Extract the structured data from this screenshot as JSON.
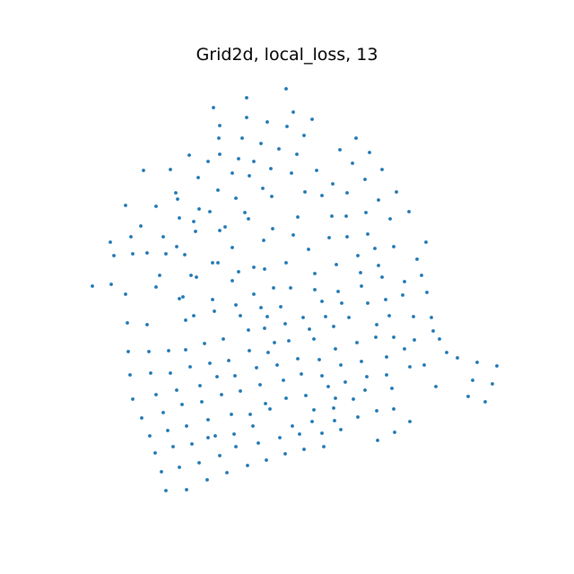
{
  "chart_data": {
    "type": "scatter",
    "title": "Grid2d, local_loss, 13",
    "xlabel": "",
    "ylabel": "",
    "axes_visible": false,
    "grid": false,
    "legend": "none",
    "marker_color": "#1f77b4",
    "points": [
      [
        319,
        99
      ],
      [
        275,
        109
      ],
      [
        238,
        120
      ],
      [
        327,
        125
      ],
      [
        275,
        131
      ],
      [
        348,
        133
      ],
      [
        298,
        136
      ],
      [
        245,
        140
      ],
      [
        320,
        141
      ],
      [
        244,
        154
      ],
      [
        339,
        151
      ],
      [
        270,
        154
      ],
      [
        291,
        160
      ],
      [
        397,
        154
      ],
      [
        379,
        167
      ],
      [
        311,
        166
      ],
      [
        412,
        170
      ],
      [
        211,
        173
      ],
      [
        232,
        180
      ],
      [
        331,
        172
      ],
      [
        245,
        172
      ],
      [
        266,
        177
      ],
      [
        283,
        180
      ],
      [
        393,
        182
      ],
      [
        160,
        190
      ],
      [
        190,
        189
      ],
      [
        302,
        188
      ],
      [
        353,
        190
      ],
      [
        259,
        193
      ],
      [
        325,
        193
      ],
      [
        278,
        196
      ],
      [
        221,
        198
      ],
      [
        407,
        200
      ],
      [
        371,
        205
      ],
      [
        426,
        189
      ],
      [
        196,
        215
      ],
      [
        198,
        222
      ],
      [
        243,
        212
      ],
      [
        293,
        210
      ],
      [
        263,
        221
      ],
      [
        303,
        219
      ],
      [
        340,
        214
      ],
      [
        359,
        218
      ],
      [
        387,
        215
      ],
      [
        442,
        214
      ],
      [
        422,
        223
      ],
      [
        140,
        229
      ],
      [
        174,
        230
      ],
      [
        222,
        233
      ],
      [
        234,
        236
      ],
      [
        273,
        237
      ],
      [
        277,
        244
      ],
      [
        216,
        247
      ],
      [
        200,
        243
      ],
      [
        332,
        242
      ],
      [
        370,
        241
      ],
      [
        386,
        241
      ],
      [
        408,
        237
      ],
      [
        435,
        244
      ],
      [
        456,
        236
      ],
      [
        157,
        252
      ],
      [
        251,
        253
      ],
      [
        245,
        257
      ],
      [
        304,
        255
      ],
      [
        218,
        258
      ],
      [
        327,
        262
      ],
      [
        367,
        265
      ],
      [
        387,
        264
      ],
      [
        410,
        261
      ],
      [
        475,
        270
      ],
      [
        123,
        270
      ],
      [
        146,
        264
      ],
      [
        182,
        264
      ],
      [
        294,
        268
      ],
      [
        259,
        276
      ],
      [
        344,
        278
      ],
      [
        197,
        275
      ],
      [
        418,
        277
      ],
      [
        439,
        275
      ],
      [
        127,
        285
      ],
      [
        148,
        283
      ],
      [
        164,
        282
      ],
      [
        185,
        283
      ],
      [
        206,
        284
      ],
      [
        237,
        293
      ],
      [
        243,
        293
      ],
      [
        319,
        293
      ],
      [
        283,
        298
      ],
      [
        295,
        300
      ],
      [
        375,
        295
      ],
      [
        399,
        285
      ],
      [
        422,
        296
      ],
      [
        465,
        289
      ],
      [
        103,
        319
      ],
      [
        124,
        317
      ],
      [
        178,
        307
      ],
      [
        213,
        307
      ],
      [
        219,
        309
      ],
      [
        266,
        303
      ],
      [
        259,
        313
      ],
      [
        351,
        305
      ],
      [
        402,
        304
      ],
      [
        426,
        309
      ],
      [
        470,
        307
      ],
      [
        451,
        314
      ],
      [
        174,
        320
      ],
      [
        140,
        328
      ],
      [
        200,
        333
      ],
      [
        204,
        331
      ],
      [
        237,
        334
      ],
      [
        283,
        328
      ],
      [
        305,
        321
      ],
      [
        324,
        321
      ],
      [
        351,
        323
      ],
      [
        377,
        325
      ],
      [
        403,
        319
      ],
      [
        430,
        334
      ],
      [
        449,
        329
      ],
      [
        476,
        326
      ],
      [
        263,
        340
      ],
      [
        359,
        336
      ],
      [
        381,
        338
      ],
      [
        410,
        338
      ],
      [
        239,
        347
      ],
      [
        291,
        343
      ],
      [
        313,
        342
      ],
      [
        481,
        354
      ],
      [
        142,
        360
      ],
      [
        164,
        362
      ],
      [
        207,
        357
      ],
      [
        216,
        352
      ],
      [
        268,
        352
      ],
      [
        298,
        353
      ],
      [
        318,
        361
      ],
      [
        338,
        354
      ],
      [
        363,
        353
      ],
      [
        389,
        354
      ],
      [
        434,
        352
      ],
      [
        461,
        353
      ],
      [
        295,
        366
      ],
      [
        277,
        368
      ],
      [
        345,
        367
      ],
      [
        372,
        364
      ],
      [
        420,
        362
      ],
      [
        483,
        369
      ],
      [
        228,
        383
      ],
      [
        249,
        378
      ],
      [
        306,
        382
      ],
      [
        322,
        380
      ],
      [
        350,
        378
      ],
      [
        374,
        389
      ],
      [
        398,
        382
      ],
      [
        419,
        376
      ],
      [
        439,
        376
      ],
      [
        462,
        379
      ],
      [
        143,
        392
      ],
      [
        166,
        392
      ],
      [
        188,
        391
      ],
      [
        207,
        390
      ],
      [
        278,
        391
      ],
      [
        299,
        393
      ],
      [
        490,
        378
      ],
      [
        498,
        393
      ],
      [
        510,
        399
      ],
      [
        532,
        404
      ],
      [
        554,
        408
      ],
      [
        145,
        418
      ],
      [
        168,
        416
      ],
      [
        190,
        416
      ],
      [
        212,
        409
      ],
      [
        234,
        405
      ],
      [
        255,
        402
      ],
      [
        286,
        410
      ],
      [
        309,
        407
      ],
      [
        332,
        400
      ],
      [
        356,
        401
      ],
      [
        380,
        407
      ],
      [
        403,
        403
      ],
      [
        431,
        398
      ],
      [
        451,
        389
      ],
      [
        457,
        409
      ],
      [
        473,
        407
      ],
      [
        527,
        424
      ],
      [
        549,
        428
      ],
      [
        242,
        420
      ],
      [
        262,
        419
      ],
      [
        336,
        417
      ],
      [
        359,
        419
      ],
      [
        409,
        420
      ],
      [
        431,
        418
      ],
      [
        148,
        445
      ],
      [
        174,
        440
      ],
      [
        197,
        435
      ],
      [
        223,
        430
      ],
      [
        247,
        440
      ],
      [
        268,
        436
      ],
      [
        290,
        429
      ],
      [
        316,
        424
      ],
      [
        366,
        431
      ],
      [
        385,
        426
      ],
      [
        407,
        435
      ],
      [
        437,
        433
      ],
      [
        486,
        431
      ],
      [
        522,
        442
      ],
      [
        541,
        448
      ],
      [
        203,
        451
      ],
      [
        225,
        448
      ],
      [
        296,
        450
      ],
      [
        319,
        444
      ],
      [
        341,
        441
      ],
      [
        374,
        444
      ],
      [
        158,
        466
      ],
      [
        182,
        460
      ],
      [
        232,
        468
      ],
      [
        258,
        462
      ],
      [
        279,
        462
      ],
      [
        301,
        456
      ],
      [
        350,
        457
      ],
      [
        372,
        455
      ],
      [
        394,
        445
      ],
      [
        420,
        458
      ],
      [
        439,
        456
      ],
      [
        208,
        475
      ],
      [
        282,
        475
      ],
      [
        326,
        475
      ],
      [
        348,
        470
      ],
      [
        373,
        469
      ],
      [
        399,
        465
      ],
      [
        457,
        470
      ],
      [
        167,
        486
      ],
      [
        187,
        480
      ],
      [
        240,
        486
      ],
      [
        261,
        484
      ],
      [
        312,
        488
      ],
      [
        334,
        484
      ],
      [
        359,
        483
      ],
      [
        380,
        479
      ],
      [
        421,
        491
      ],
      [
        440,
        482
      ],
      [
        173,
        505
      ],
      [
        193,
        498
      ],
      [
        214,
        495
      ],
      [
        232,
        488
      ],
      [
        263,
        498
      ],
      [
        288,
        494
      ],
      [
        318,
        506
      ],
      [
        339,
        501
      ],
      [
        361,
        498
      ],
      [
        253,
        527
      ],
      [
        276,
        519
      ],
      [
        297,
        513
      ],
      [
        180,
        526
      ],
      [
        200,
        521
      ],
      [
        222,
        516
      ],
      [
        245,
        508
      ],
      [
        231,
        535
      ],
      [
        185,
        547
      ],
      [
        208,
        546
      ]
    ]
  }
}
